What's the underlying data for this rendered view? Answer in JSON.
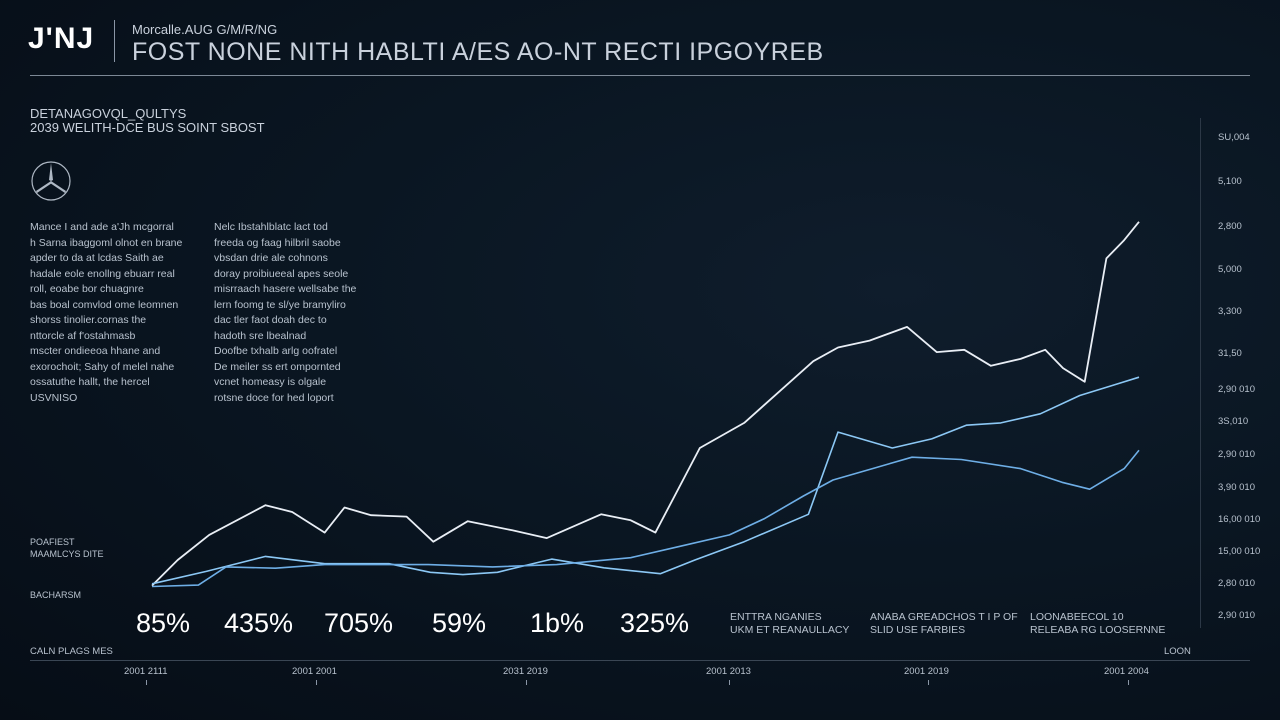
{
  "header": {
    "logo": "J'NJ",
    "subtitle": "Morcalle.AUG G/M/R/NG",
    "title": "FOST NONE NITH HABLTI A/ES AO-NT RECTI IPGOYREB"
  },
  "section": {
    "line1": "DETANAGOVQL_QULTYS",
    "line2": "2039 WELITH-DCE BUS SOINT SBOST"
  },
  "emblem_icon": "three-pointed-star-icon",
  "paragraphs": [
    "Mance I and ade a'Jh mcgorral\nh Sarna ibaggoml olnot en brane\napder to da at lcdas Saith ae\nhadale eole enollng ebuarr real\nroll, eoabe bor chuagnre\nbas boal comvlod ome leomnen\nshorss tinolier.cornas the\nnttorcle af f'ostahmasb\nmscter ondieeoa hhane and\nexorochoit; Sahy of melel nahe\nossatuthe hallt, the hercel\nUSVNISO",
    "Nelc Ibstahlblatc lact tod\nfreeda og faag hilbril saobe\nvbsdan drie ale cohnons\ndoray proibiueeal apes seole\nmisrraach hasere wellsabe the\nlern foomg te sl/ye bramyliro\ndac tler faot doah dec to\nhadoth sre lbealnad\nDoofbe txhalb arlg oofratel\nDe meiler ss ert ompornted\nvcnet homeasy is olgale\nrotsne doce for hed loport"
  ],
  "side_labels": {
    "a1": "POAFIEST",
    "a2": "MAAMLCYS DITE",
    "b": "BACHARSM"
  },
  "stats": [
    "85%",
    "435%",
    "705%",
    "59%",
    "1b%",
    "325%"
  ],
  "notes": [
    "ENTTRA NGANIES\nUKM ET REANAULLACY",
    "ANABA GREADCHOS T I P OF\nSLID USE FARBIES",
    "LOONABEECOL 10\nRELEABA RG LOOSERNNE"
  ],
  "bottom": {
    "left": "CALN PLAGS MES",
    "right": "LOON"
  },
  "colors": {
    "primary": "#e9eef5",
    "accent1": "#8cc8f5",
    "accent2": "#6eaee6"
  },
  "chart_data": {
    "type": "line",
    "x_labels": [
      "2001 2111",
      "2001 2001",
      "2031 2019",
      "2001 2013",
      "2001 2019",
      "2001 2004"
    ],
    "y_labels": [
      "SU,004",
      "5,100",
      "2,800",
      "5,000",
      "3,300",
      "31,50",
      "2,90 010",
      "3S,010",
      "2,90 010",
      "3,90 010",
      "16,00 010",
      "15,00 010",
      "2,80 010",
      "2,90 010"
    ],
    "y_scale": [
      0,
      100
    ],
    "x_range": [
      0,
      100
    ],
    "series": [
      {
        "color": "#e9eef5",
        "points": [
          [
            0,
            1.4
          ],
          [
            2.6,
            7
          ],
          [
            5.8,
            12.5
          ],
          [
            11.5,
            19
          ],
          [
            14.2,
            17.5
          ],
          [
            17.5,
            13
          ],
          [
            19.5,
            18.5
          ],
          [
            22.2,
            16.8
          ],
          [
            25.8,
            16.5
          ],
          [
            28.5,
            11
          ],
          [
            32,
            15.5
          ],
          [
            36.5,
            13.5
          ],
          [
            40,
            11.8
          ],
          [
            45.5,
            17
          ],
          [
            48.5,
            15.7
          ],
          [
            51,
            13
          ],
          [
            55.5,
            31.5
          ],
          [
            60,
            37
          ],
          [
            67,
            50.5
          ],
          [
            69.5,
            53.5
          ],
          [
            72.7,
            55
          ],
          [
            76.5,
            58
          ],
          [
            79.5,
            52.5
          ],
          [
            82.3,
            53
          ],
          [
            85,
            49.5
          ],
          [
            88,
            51
          ],
          [
            90.5,
            53
          ],
          [
            92.3,
            49
          ],
          [
            94.5,
            46
          ],
          [
            96.7,
            73
          ],
          [
            98.5,
            77
          ],
          [
            100,
            81
          ]
        ]
      },
      {
        "color": "#8cc8f5",
        "points": [
          [
            0,
            1.8
          ],
          [
            5.5,
            4.5
          ],
          [
            11.5,
            7.8
          ],
          [
            17.5,
            6.2
          ],
          [
            24,
            6.2
          ],
          [
            28.2,
            4.3
          ],
          [
            31.5,
            3.8
          ],
          [
            35,
            4.3
          ],
          [
            40.5,
            7.2
          ],
          [
            45.8,
            5.3
          ],
          [
            51.5,
            4
          ],
          [
            55,
            7
          ],
          [
            60,
            11
          ],
          [
            66.5,
            17
          ],
          [
            69.5,
            35
          ],
          [
            75,
            31.5
          ],
          [
            79,
            33.5
          ],
          [
            82.5,
            36.5
          ],
          [
            86,
            37
          ],
          [
            90,
            39
          ],
          [
            94,
            43
          ],
          [
            97,
            45
          ],
          [
            100,
            47
          ]
        ]
      },
      {
        "color": "#6eaee6",
        "points": [
          [
            0,
            1.2
          ],
          [
            4.7,
            1.5
          ],
          [
            7.5,
            5.5
          ],
          [
            12.5,
            5.2
          ],
          [
            17.5,
            6
          ],
          [
            28,
            6
          ],
          [
            34.5,
            5.5
          ],
          [
            41,
            6
          ],
          [
            48.5,
            7.5
          ],
          [
            53.5,
            10
          ],
          [
            58.5,
            12.5
          ],
          [
            62,
            16
          ],
          [
            66,
            21
          ],
          [
            69,
            24.5
          ],
          [
            73,
            27
          ],
          [
            77,
            29.5
          ],
          [
            82,
            29
          ],
          [
            88,
            27
          ],
          [
            92.2,
            24
          ],
          [
            95,
            22.5
          ],
          [
            98.5,
            27
          ],
          [
            100,
            31
          ]
        ]
      }
    ]
  }
}
